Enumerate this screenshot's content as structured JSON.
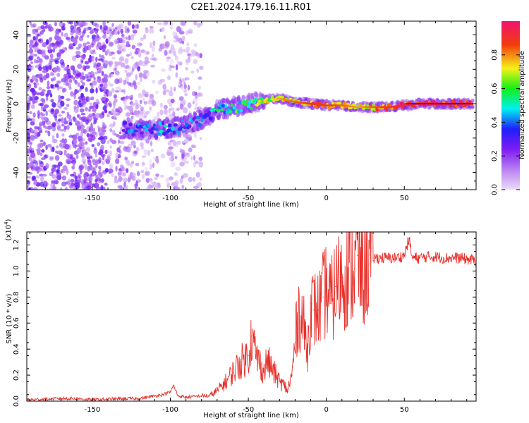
{
  "figure": {
    "title": "C2E1.2024.179.16.11.R01"
  },
  "chart_data": [
    {
      "type": "heatmap",
      "title": "C2E1.2024.179.16.11.R01",
      "xlabel": "Height of straight line (km)",
      "ylabel": "Frequency (Hz)",
      "xlim": [
        -192,
        96
      ],
      "ylim": [
        -50,
        48
      ],
      "xticks": [
        -150,
        -100,
        -50,
        0,
        50
      ],
      "yticks": [
        -40,
        -20,
        0,
        20,
        40
      ],
      "grid": false,
      "ridge": {
        "description_points_x": [
          -130,
          -120,
          -110,
          -100,
          -90,
          -80,
          -70,
          -60,
          -50,
          -40,
          -30,
          -20,
          -10,
          0,
          10,
          20,
          30,
          40,
          50,
          60,
          70,
          80,
          90,
          94
        ],
        "frequency_hz": [
          -14,
          -15,
          -15,
          -14,
          -13,
          -9,
          -4,
          -2,
          0,
          2,
          3,
          1,
          0,
          -1,
          -1,
          -2,
          -2,
          -2,
          -1,
          0,
          0,
          0,
          0,
          0
        ],
        "amplitude": [
          0.3,
          0.35,
          0.35,
          0.4,
          0.35,
          0.3,
          0.45,
          0.5,
          0.55,
          0.6,
          0.7,
          0.75,
          0.8,
          0.8,
          0.75,
          0.7,
          0.75,
          0.8,
          0.85,
          0.9,
          0.9,
          0.9,
          0.9,
          0.9
        ]
      },
      "colorbar": {
        "label": "Normalized spectral amplitude",
        "range": [
          0,
          1
        ],
        "ticks": [
          "0.0",
          "0.2",
          "0.4",
          "0.6",
          "0.8"
        ],
        "colors": [
          "#ecdcf9",
          "#b980f2",
          "#7d1bf4",
          "#1e20fb",
          "#00f0f0",
          "#12f015",
          "#f6f118",
          "#f23c0c",
          "#f21270"
        ]
      }
    },
    {
      "type": "line",
      "xlabel": "Height of straight line (km)",
      "ylabel": "SNR (10 * v/v)",
      "y_multiplier": "(x10",
      "y_multiplier_exponent": "4",
      "y_multiplier_close": ")",
      "xlim": [
        -192,
        96
      ],
      "ylim": [
        0,
        1.3
      ],
      "xticks": [
        -150,
        -100,
        -50,
        0,
        50
      ],
      "yticks": [
        0.0,
        0.2,
        0.4,
        0.6,
        0.8,
        1.0,
        1.2
      ],
      "grid": false,
      "series": [
        {
          "color": "#e8302b",
          "x": [
            -192,
            -180,
            -170,
            -160,
            -150,
            -140,
            -130,
            -120,
            -110,
            -105,
            -100,
            -98,
            -95,
            -90,
            -80,
            -75,
            -70,
            -65,
            -60,
            -55,
            -50,
            -48,
            -45,
            -42,
            -40,
            -38,
            -35,
            -30,
            -27,
            -25,
            -22,
            -20,
            -18,
            -15,
            -12,
            -10,
            -8,
            -5,
            -2,
            0,
            3,
            6,
            10,
            14,
            18,
            20,
            23,
            26,
            30,
            35,
            40,
            45,
            50,
            53,
            55,
            60,
            65,
            70,
            75,
            80,
            85,
            90,
            96
          ],
          "y": [
            0.01,
            0.015,
            0.02,
            0.02,
            0.01,
            0.015,
            0.02,
            0.02,
            0.04,
            0.05,
            0.07,
            0.12,
            0.04,
            0.03,
            0.04,
            0.04,
            0.08,
            0.14,
            0.22,
            0.3,
            0.35,
            0.5,
            0.35,
            0.28,
            0.22,
            0.32,
            0.25,
            0.15,
            0.12,
            0.08,
            0.2,
            0.45,
            0.7,
            0.6,
            0.4,
            0.75,
            0.7,
            0.7,
            0.8,
            0.86,
            0.75,
            0.88,
            0.95,
            1.0,
            1.02,
            1.12,
            0.96,
            1.08,
            1.1,
            1.1,
            1.1,
            1.1,
            1.12,
            1.25,
            1.1,
            1.1,
            1.11,
            1.11,
            1.1,
            1.1,
            1.1,
            1.09,
            1.08
          ]
        }
      ]
    }
  ]
}
